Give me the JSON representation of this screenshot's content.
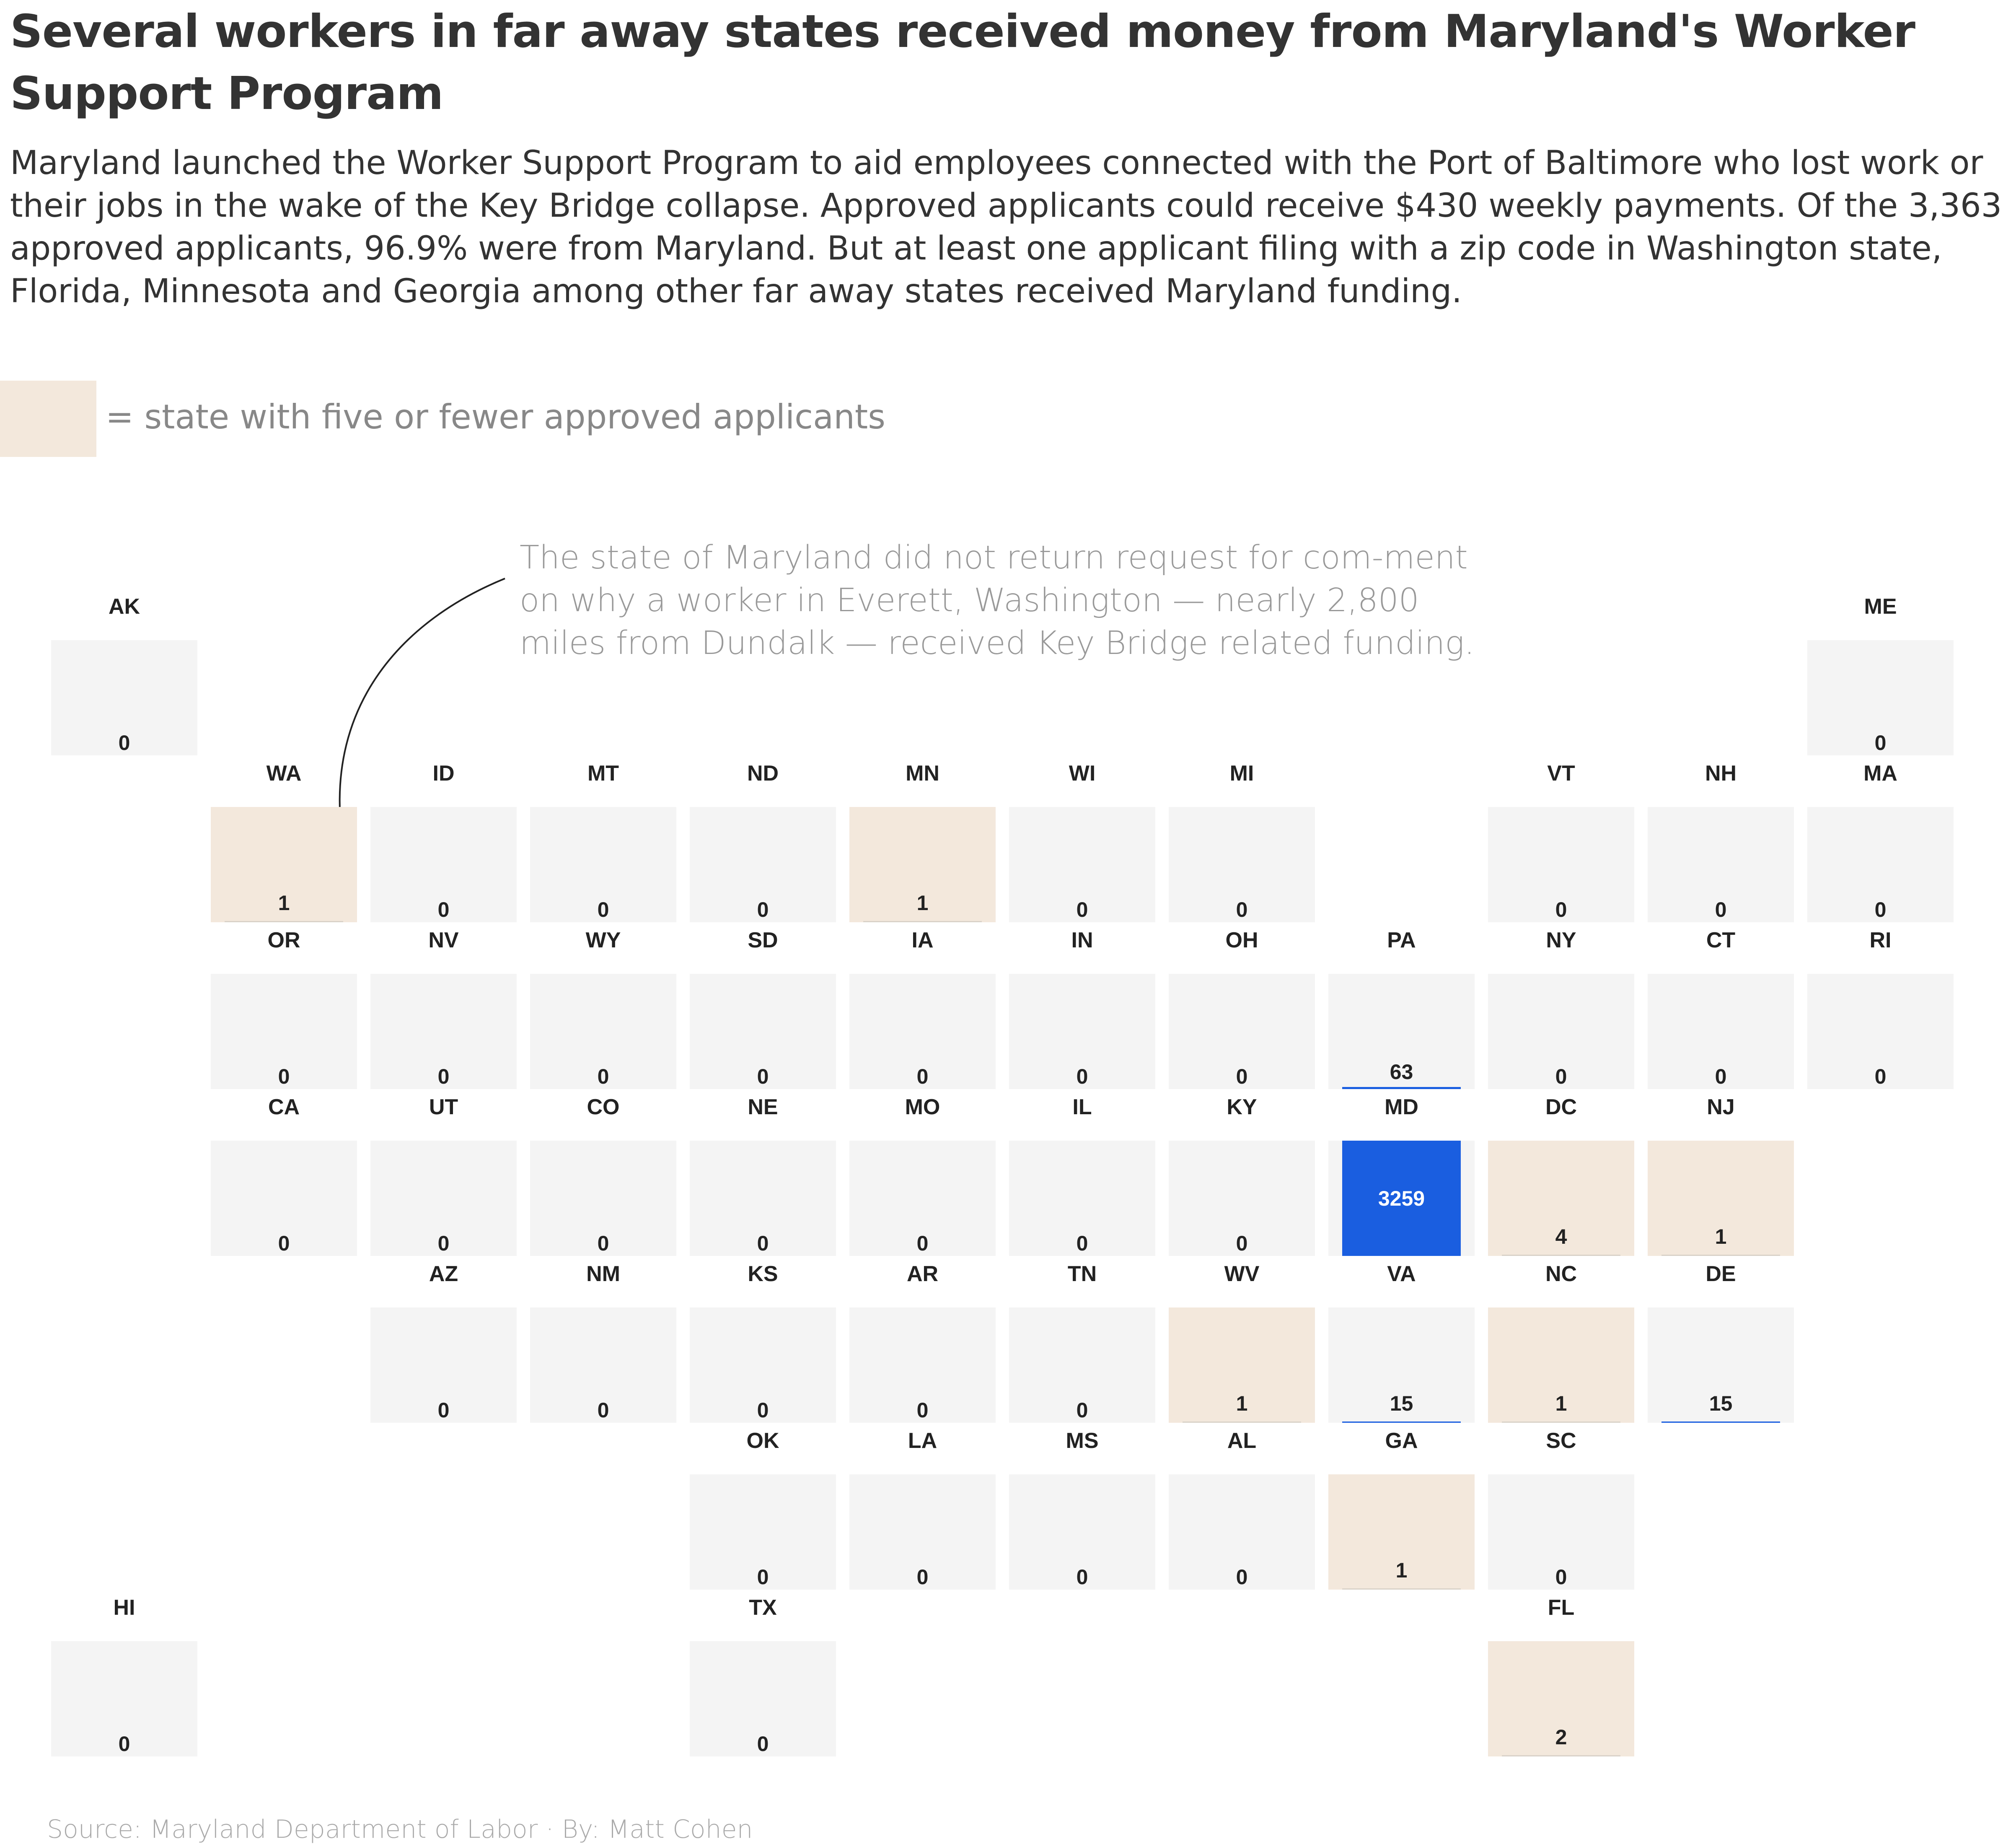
{
  "title": "Several workers in far away states received money from Maryland's Worker Support Program",
  "subtitle": "Maryland launched the Worker Support Program to aid employees connected with the Port of Baltimore who lost work or their jobs in the wake of the Key Bridge collapse. Approved applicants could receive $430 weekly payments. Of the 3,363 approved applicants, 96.9% were from Maryland. But at least one applicant filing with a zip code in Washington state, Florida, Minnesota and Georgia among other far away states received Maryland funding.",
  "legend": {
    "label": "= state with five or fewer approved applicants",
    "color": "#f3e8dc"
  },
  "annotation": "The state of Maryland did not return request for com-ment on why a worker in Everett, Washington — nearly 2,800 miles from Dundalk — received Key Bridge related funding.",
  "source": "Source: Maryland Department of Labor · By: Matt Cohen",
  "colors": {
    "tile": "#f4f4f4",
    "few": "#f3e8dc",
    "bar": "#1a5ee0"
  },
  "chart_data": {
    "type": "tile grid map",
    "value_max": 3259,
    "states": [
      {
        "abbr": "AK",
        "row": 0,
        "col": 0,
        "value": 0
      },
      {
        "abbr": "ME",
        "row": 0,
        "col": 11,
        "value": 0
      },
      {
        "abbr": "WA",
        "row": 1,
        "col": 1,
        "value": 1
      },
      {
        "abbr": "ID",
        "row": 1,
        "col": 2,
        "value": 0
      },
      {
        "abbr": "MT",
        "row": 1,
        "col": 3,
        "value": 0
      },
      {
        "abbr": "ND",
        "row": 1,
        "col": 4,
        "value": 0
      },
      {
        "abbr": "MN",
        "row": 1,
        "col": 5,
        "value": 1
      },
      {
        "abbr": "WI",
        "row": 1,
        "col": 6,
        "value": 0
      },
      {
        "abbr": "MI",
        "row": 1,
        "col": 7,
        "value": 0
      },
      {
        "abbr": "VT",
        "row": 1,
        "col": 9,
        "value": 0
      },
      {
        "abbr": "NH",
        "row": 1,
        "col": 10,
        "value": 0
      },
      {
        "abbr": "MA",
        "row": 1,
        "col": 11,
        "value": 0
      },
      {
        "abbr": "OR",
        "row": 2,
        "col": 1,
        "value": 0
      },
      {
        "abbr": "NV",
        "row": 2,
        "col": 2,
        "value": 0
      },
      {
        "abbr": "WY",
        "row": 2,
        "col": 3,
        "value": 0
      },
      {
        "abbr": "SD",
        "row": 2,
        "col": 4,
        "value": 0
      },
      {
        "abbr": "IA",
        "row": 2,
        "col": 5,
        "value": 0
      },
      {
        "abbr": "IN",
        "row": 2,
        "col": 6,
        "value": 0
      },
      {
        "abbr": "OH",
        "row": 2,
        "col": 7,
        "value": 0
      },
      {
        "abbr": "PA",
        "row": 2,
        "col": 8,
        "value": 63
      },
      {
        "abbr": "NY",
        "row": 2,
        "col": 9,
        "value": 0
      },
      {
        "abbr": "CT",
        "row": 2,
        "col": 10,
        "value": 0
      },
      {
        "abbr": "RI",
        "row": 2,
        "col": 11,
        "value": 0
      },
      {
        "abbr": "CA",
        "row": 3,
        "col": 1,
        "value": 0
      },
      {
        "abbr": "UT",
        "row": 3,
        "col": 2,
        "value": 0
      },
      {
        "abbr": "CO",
        "row": 3,
        "col": 3,
        "value": 0
      },
      {
        "abbr": "NE",
        "row": 3,
        "col": 4,
        "value": 0
      },
      {
        "abbr": "MO",
        "row": 3,
        "col": 5,
        "value": 0
      },
      {
        "abbr": "IL",
        "row": 3,
        "col": 6,
        "value": 0
      },
      {
        "abbr": "KY",
        "row": 3,
        "col": 7,
        "value": 0
      },
      {
        "abbr": "MD",
        "row": 3,
        "col": 8,
        "value": 3259
      },
      {
        "abbr": "DC",
        "row": 3,
        "col": 9,
        "value": 4
      },
      {
        "abbr": "NJ",
        "row": 3,
        "col": 10,
        "value": 1
      },
      {
        "abbr": "AZ",
        "row": 4,
        "col": 2,
        "value": 0
      },
      {
        "abbr": "NM",
        "row": 4,
        "col": 3,
        "value": 0
      },
      {
        "abbr": "KS",
        "row": 4,
        "col": 4,
        "value": 0
      },
      {
        "abbr": "AR",
        "row": 4,
        "col": 5,
        "value": 0
      },
      {
        "abbr": "TN",
        "row": 4,
        "col": 6,
        "value": 0
      },
      {
        "abbr": "WV",
        "row": 4,
        "col": 7,
        "value": 1
      },
      {
        "abbr": "VA",
        "row": 4,
        "col": 8,
        "value": 15
      },
      {
        "abbr": "NC",
        "row": 4,
        "col": 9,
        "value": 1
      },
      {
        "abbr": "DE",
        "row": 4,
        "col": 10,
        "value": 15
      },
      {
        "abbr": "OK",
        "row": 5,
        "col": 4,
        "value": 0
      },
      {
        "abbr": "LA",
        "row": 5,
        "col": 5,
        "value": 0
      },
      {
        "abbr": "MS",
        "row": 5,
        "col": 6,
        "value": 0
      },
      {
        "abbr": "AL",
        "row": 5,
        "col": 7,
        "value": 0
      },
      {
        "abbr": "GA",
        "row": 5,
        "col": 8,
        "value": 1
      },
      {
        "abbr": "SC",
        "row": 5,
        "col": 9,
        "value": 0
      },
      {
        "abbr": "HI",
        "row": 6,
        "col": 0,
        "value": 0
      },
      {
        "abbr": "TX",
        "row": 6,
        "col": 4,
        "value": 0
      },
      {
        "abbr": "FL",
        "row": 6,
        "col": 9,
        "value": 2
      }
    ]
  }
}
